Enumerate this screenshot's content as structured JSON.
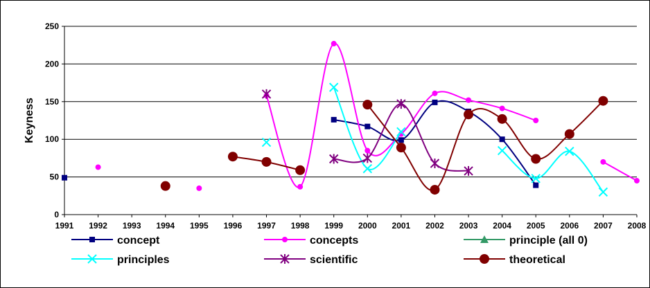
{
  "chart_data": {
    "type": "line",
    "ylabel": "Keyness",
    "xlabel": "",
    "ylim": [
      0,
      250
    ],
    "yticks": [
      0,
      50,
      100,
      150,
      200,
      250
    ],
    "categories": [
      "1991",
      "1992",
      "1993",
      "1994",
      "1995",
      "1996",
      "1997",
      "1998",
      "1999",
      "2000",
      "2001",
      "2002",
      "2003",
      "2004",
      "2005",
      "2006",
      "2007",
      "2008"
    ],
    "grid": "horizontal",
    "legend_position": "bottom",
    "series": [
      {
        "name": "concept",
        "color": "#000080",
        "marker": "square",
        "values": [
          49,
          null,
          null,
          null,
          null,
          null,
          null,
          null,
          126,
          117,
          99,
          149,
          137,
          100,
          39,
          null,
          null,
          null
        ]
      },
      {
        "name": "concepts",
        "color": "#FF00FF",
        "marker": "circle",
        "values": [
          null,
          63,
          null,
          null,
          35,
          null,
          158,
          37,
          227,
          85,
          107,
          161,
          152,
          141,
          125,
          null,
          70,
          45
        ]
      },
      {
        "name": "principle (all 0)",
        "color": "#339966",
        "marker": "triangle",
        "values": [
          null,
          null,
          null,
          null,
          null,
          null,
          null,
          null,
          null,
          null,
          null,
          null,
          null,
          null,
          null,
          null,
          null,
          null
        ]
      },
      {
        "name": "principles",
        "color": "#00FFFF",
        "marker": "x",
        "values": [
          null,
          null,
          null,
          null,
          null,
          null,
          96,
          null,
          169,
          61,
          110,
          null,
          null,
          85,
          48,
          84,
          30,
          null
        ]
      },
      {
        "name": "scientific",
        "color": "#800080",
        "marker": "star",
        "values": [
          null,
          null,
          null,
          null,
          null,
          null,
          160,
          null,
          74,
          75,
          147,
          68,
          58,
          null,
          null,
          null,
          null,
          null
        ]
      },
      {
        "name": "theoretical",
        "color": "#800000",
        "marker": "bigcircle",
        "values": [
          null,
          null,
          null,
          38,
          null,
          77,
          70,
          59,
          null,
          146,
          89,
          33,
          133,
          127,
          74,
          107,
          151,
          null
        ]
      }
    ]
  }
}
